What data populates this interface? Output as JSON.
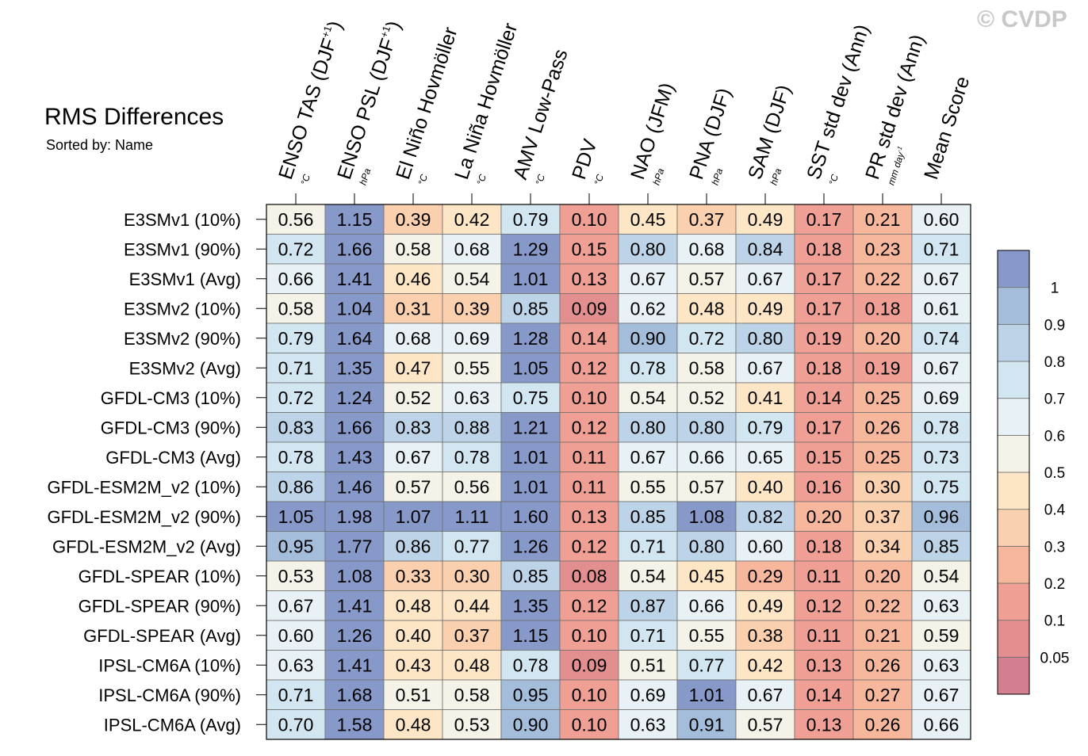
{
  "watermark": "© CVDP",
  "title": "RMS Differences",
  "subtitle": "Sorted by: Name",
  "chart_data": {
    "type": "heatmap",
    "columns": [
      {
        "label": "ENSO TAS (DJF",
        "sup": "+1",
        "close": ")",
        "unit": "°C"
      },
      {
        "label": "ENSO PSL (DJF",
        "sup": "+1",
        "close": ")",
        "unit": "hPa"
      },
      {
        "label": "El Niño Hovmöller",
        "sup": "",
        "close": "",
        "unit": "°C"
      },
      {
        "label": "La Niña Hovmöller",
        "sup": "",
        "close": "",
        "unit": "°C"
      },
      {
        "label": "AMV Low-Pass",
        "sup": "",
        "close": "",
        "unit": "°C"
      },
      {
        "label": "PDV",
        "sup": "",
        "close": "",
        "unit": "°C"
      },
      {
        "label": "NAO (JFM)",
        "sup": "",
        "close": "",
        "unit": "hPa"
      },
      {
        "label": "PNA (DJF)",
        "sup": "",
        "close": "",
        "unit": "hPa"
      },
      {
        "label": "SAM (DJF)",
        "sup": "",
        "close": "",
        "unit": "hPa"
      },
      {
        "label": "SST std dev (Ann)",
        "sup": "",
        "close": "",
        "unit": "°C"
      },
      {
        "label": "PR std dev (Ann)",
        "sup": "",
        "close": "",
        "unit": "mm day",
        "unit_sup": "-1"
      },
      {
        "label": "Mean Score",
        "sup": "",
        "close": "",
        "unit": ""
      }
    ],
    "rows": [
      "E3SMv1 (10%)",
      "E3SMv1 (90%)",
      "E3SMv1 (Avg)",
      "E3SMv2 (10%)",
      "E3SMv2 (90%)",
      "E3SMv2 (Avg)",
      "GFDL-CM3 (10%)",
      "GFDL-CM3 (90%)",
      "GFDL-CM3 (Avg)",
      "GFDL-ESM2M_v2 (10%)",
      "GFDL-ESM2M_v2 (90%)",
      "GFDL-ESM2M_v2 (Avg)",
      "GFDL-SPEAR (10%)",
      "GFDL-SPEAR (90%)",
      "GFDL-SPEAR (Avg)",
      "IPSL-CM6A (10%)",
      "IPSL-CM6A (90%)",
      "IPSL-CM6A (Avg)"
    ],
    "values": [
      [
        "0.56",
        "1.15",
        "0.39",
        "0.42",
        "0.79",
        "0.10",
        "0.45",
        "0.37",
        "0.49",
        "0.17",
        "0.21",
        "0.60"
      ],
      [
        "0.72",
        "1.66",
        "0.58",
        "0.68",
        "1.29",
        "0.15",
        "0.80",
        "0.68",
        "0.84",
        "0.18",
        "0.23",
        "0.71"
      ],
      [
        "0.66",
        "1.41",
        "0.46",
        "0.54",
        "1.01",
        "0.13",
        "0.67",
        "0.57",
        "0.67",
        "0.17",
        "0.22",
        "0.67"
      ],
      [
        "0.58",
        "1.04",
        "0.31",
        "0.39",
        "0.85",
        "0.09",
        "0.62",
        "0.48",
        "0.49",
        "0.17",
        "0.18",
        "0.61"
      ],
      [
        "0.79",
        "1.64",
        "0.68",
        "0.69",
        "1.28",
        "0.14",
        "0.90",
        "0.72",
        "0.80",
        "0.19",
        "0.20",
        "0.74"
      ],
      [
        "0.71",
        "1.35",
        "0.47",
        "0.55",
        "1.05",
        "0.12",
        "0.78",
        "0.58",
        "0.67",
        "0.18",
        "0.19",
        "0.67"
      ],
      [
        "0.72",
        "1.24",
        "0.52",
        "0.63",
        "0.75",
        "0.10",
        "0.54",
        "0.52",
        "0.41",
        "0.14",
        "0.25",
        "0.69"
      ],
      [
        "0.83",
        "1.66",
        "0.83",
        "0.88",
        "1.21",
        "0.12",
        "0.80",
        "0.80",
        "0.79",
        "0.17",
        "0.26",
        "0.78"
      ],
      [
        "0.78",
        "1.43",
        "0.67",
        "0.78",
        "1.01",
        "0.11",
        "0.67",
        "0.66",
        "0.65",
        "0.15",
        "0.25",
        "0.73"
      ],
      [
        "0.86",
        "1.46",
        "0.57",
        "0.56",
        "1.01",
        "0.11",
        "0.55",
        "0.57",
        "0.40",
        "0.16",
        "0.30",
        "0.75"
      ],
      [
        "1.05",
        "1.98",
        "1.07",
        "1.11",
        "1.60",
        "0.13",
        "0.85",
        "1.08",
        "0.82",
        "0.20",
        "0.37",
        "0.96"
      ],
      [
        "0.95",
        "1.77",
        "0.86",
        "0.77",
        "1.26",
        "0.12",
        "0.71",
        "0.80",
        "0.60",
        "0.18",
        "0.34",
        "0.85"
      ],
      [
        "0.53",
        "1.08",
        "0.33",
        "0.30",
        "0.85",
        "0.08",
        "0.54",
        "0.45",
        "0.29",
        "0.11",
        "0.20",
        "0.54"
      ],
      [
        "0.67",
        "1.41",
        "0.48",
        "0.44",
        "1.35",
        "0.12",
        "0.87",
        "0.66",
        "0.49",
        "0.12",
        "0.22",
        "0.63"
      ],
      [
        "0.60",
        "1.26",
        "0.40",
        "0.37",
        "1.15",
        "0.10",
        "0.71",
        "0.55",
        "0.38",
        "0.11",
        "0.21",
        "0.59"
      ],
      [
        "0.63",
        "1.41",
        "0.43",
        "0.48",
        "0.78",
        "0.09",
        "0.51",
        "0.77",
        "0.42",
        "0.13",
        "0.26",
        "0.63"
      ],
      [
        "0.71",
        "1.68",
        "0.51",
        "0.58",
        "0.95",
        "0.10",
        "0.69",
        "1.01",
        "0.67",
        "0.14",
        "0.27",
        "0.67"
      ],
      [
        "0.70",
        "1.58",
        "0.48",
        "0.53",
        "0.90",
        "0.10",
        "0.63",
        "0.91",
        "0.57",
        "0.13",
        "0.26",
        "0.66"
      ]
    ],
    "colorbar": {
      "levels": [
        0.05,
        0.1,
        0.2,
        0.3,
        0.4,
        0.5,
        0.6,
        0.7,
        0.8,
        0.9,
        1
      ],
      "labels": [
        "0.05",
        "0.1",
        "0.2",
        "0.3",
        "0.4",
        "0.5",
        "0.6",
        "0.7",
        "0.8",
        "0.9",
        "1"
      ],
      "colors": [
        "#d47f8f",
        "#e38f90",
        "#ef9f93",
        "#f6b79d",
        "#fad0ae",
        "#fde6c5",
        "#f5f3e7",
        "#e8f1f5",
        "#d2e6f1",
        "#bdd4e8",
        "#a3bddb",
        "#8799c9"
      ]
    }
  }
}
